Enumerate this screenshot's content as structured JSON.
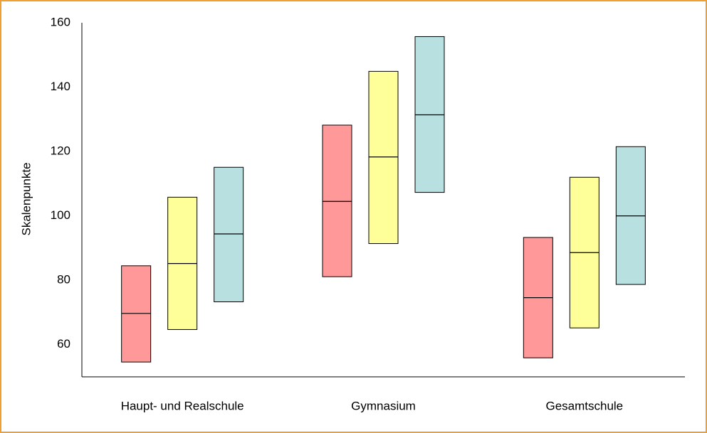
{
  "chart_data": {
    "type": "range-bar",
    "y_label": "Skalenpunkte",
    "categories": [
      "Haupt- und Realschule",
      "Gymnasium",
      "Gesamtschule"
    ],
    "series": [
      {
        "color": "#ff9999",
        "low": [
          54.6,
          81.1,
          55.9
        ],
        "median": [
          69.7,
          104.5,
          74.6
        ],
        "high": [
          84.5,
          128.2,
          93.3
        ]
      },
      {
        "color": "#ffff99",
        "low": [
          64.7,
          91.4,
          65.2
        ],
        "median": [
          85.2,
          118.3,
          88.6
        ],
        "high": [
          105.8,
          144.9,
          112
        ]
      },
      {
        "color": "#b8e0e0",
        "low": [
          73.3,
          107.3,
          78.7
        ],
        "median": [
          94.4,
          131.4,
          100
        ],
        "high": [
          115.1,
          155.7,
          121.5
        ]
      }
    ],
    "ylim": [
      50,
      160
    ],
    "yticks": [
      60,
      80,
      100,
      120,
      140,
      160
    ]
  }
}
